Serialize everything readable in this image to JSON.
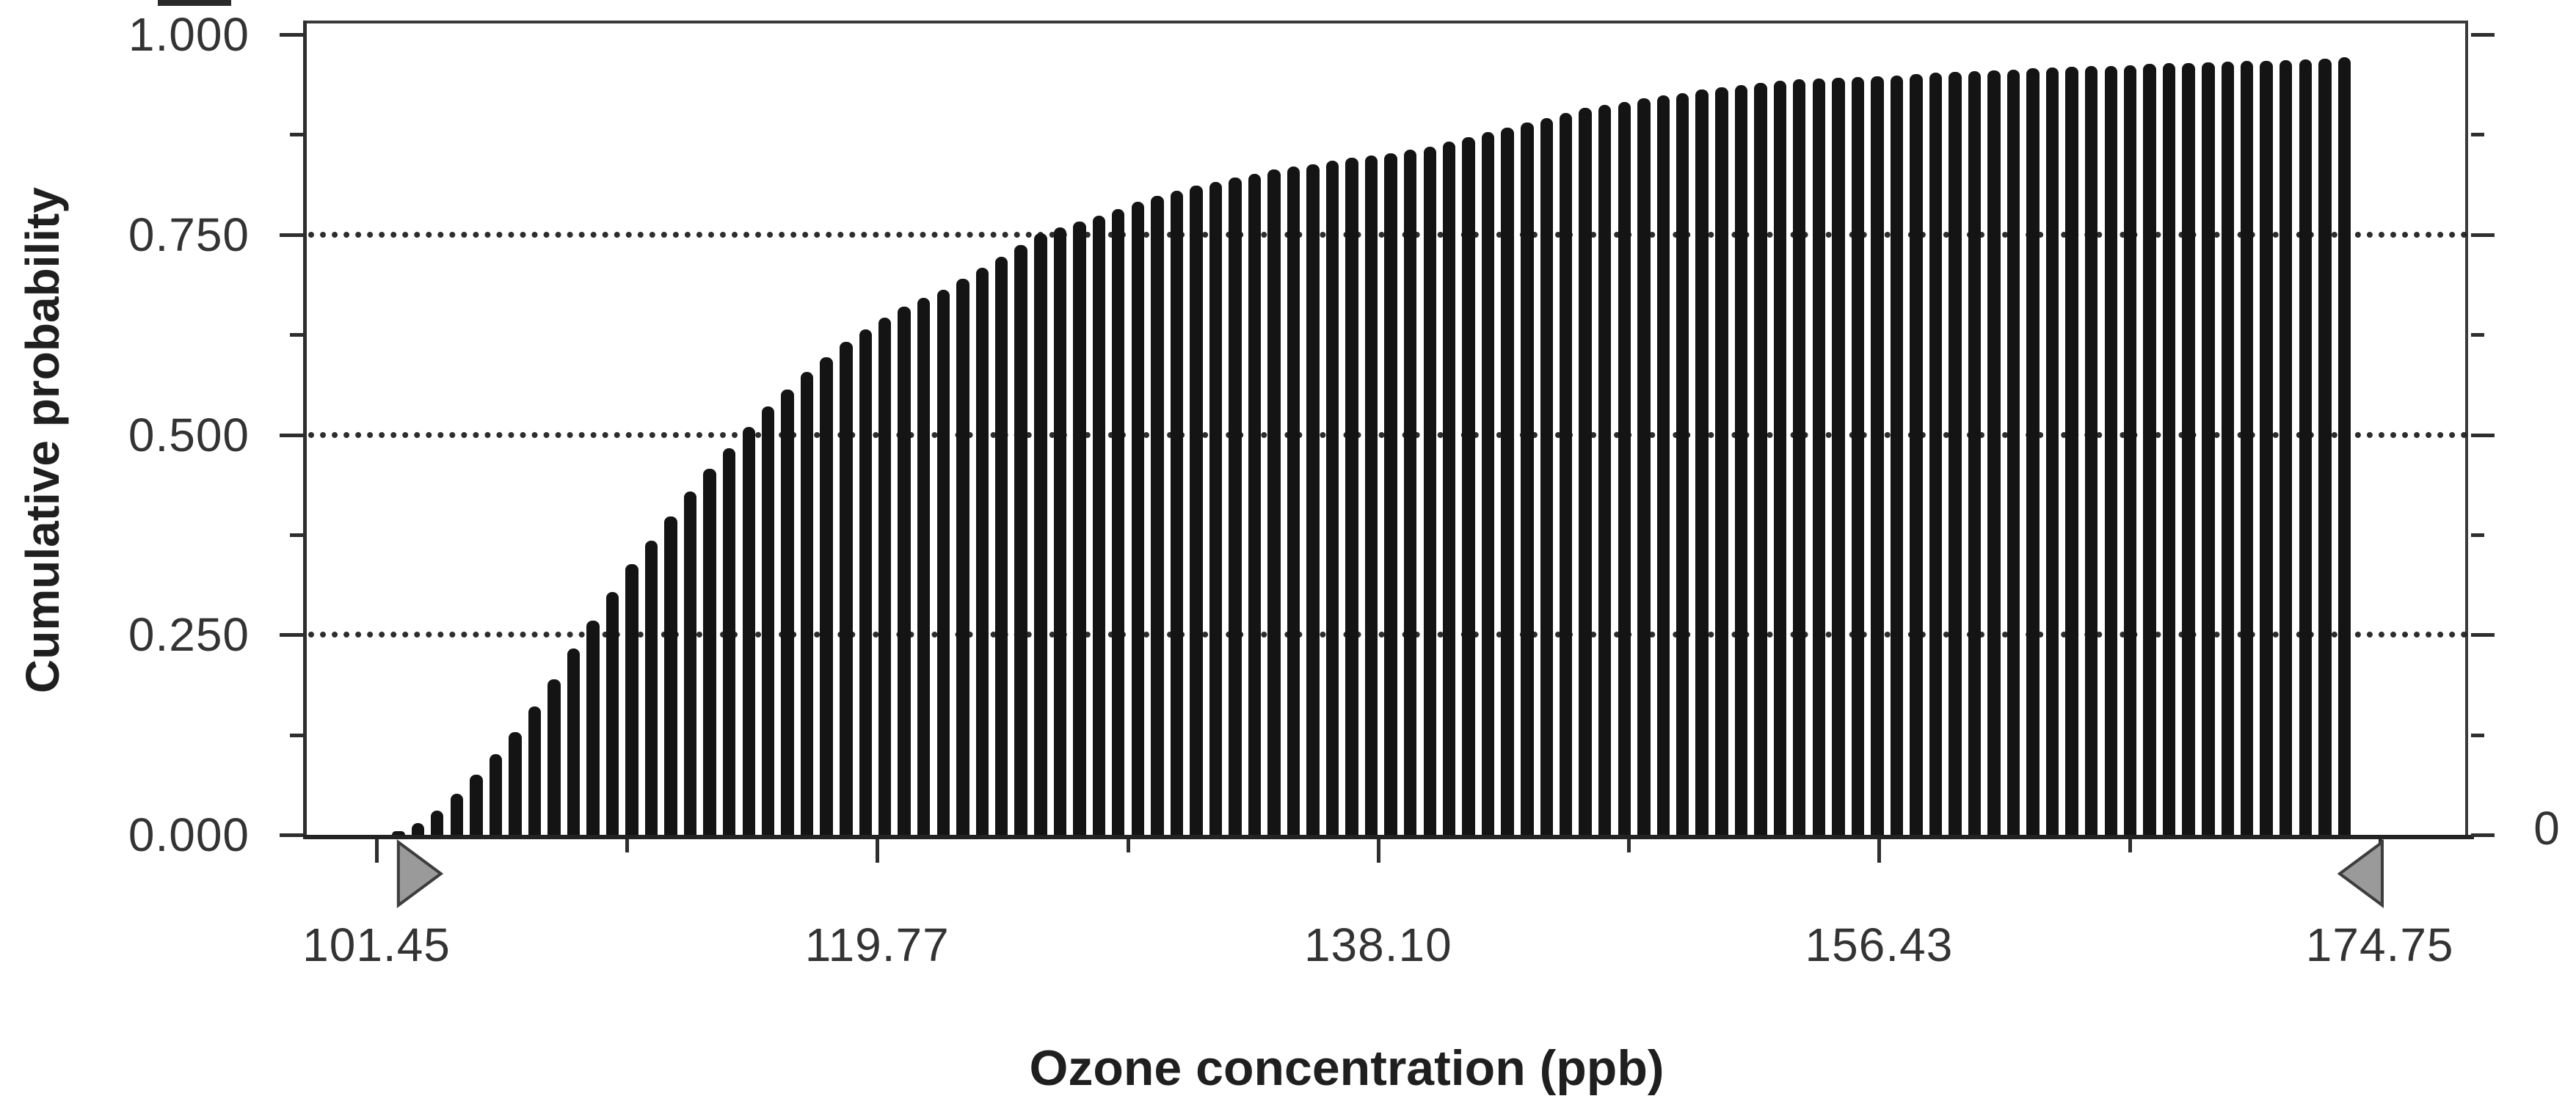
{
  "chart_data": {
    "type": "bar",
    "title": "",
    "ylabel": "Cumulative probability",
    "xlabel": "Ozone concentration (ppb)",
    "y_tick_labels": [
      "0.000",
      "0.250",
      "0.500",
      "0.750",
      "1.000"
    ],
    "y_tick_values": [
      0,
      0.25,
      0.5,
      0.75,
      1.0
    ],
    "y_minor_tick_values": [
      0.125,
      0.375,
      0.625,
      0.875
    ],
    "x_tick_labels": [
      "101.45",
      "119.77",
      "138.10",
      "156.43",
      "174.75"
    ],
    "x_tick_values": [
      101.45,
      119.77,
      138.1,
      156.43,
      174.75
    ],
    "x_minor_tick_values": [
      110.61,
      128.94,
      147.27,
      165.59
    ],
    "right_axis_tick_label": "0",
    "gridlines_at": [
      0.25,
      0.5,
      0.75
    ],
    "grid_style": "dotted",
    "legend": "none",
    "xlim": [
      98.9,
      178.0
    ],
    "ylim": [
      0,
      1.0
    ],
    "series": [
      {
        "name": "cumulative probability of ozone concentration",
        "x": [
          102.25,
          102.96,
          103.67,
          104.39,
          105.1,
          105.81,
          106.52,
          107.23,
          107.95,
          108.66,
          109.37,
          110.08,
          110.79,
          111.51,
          112.22,
          112.93,
          113.64,
          114.35,
          115.07,
          115.78,
          116.49,
          117.2,
          117.91,
          118.63,
          119.34,
          120.05,
          120.76,
          121.47,
          122.19,
          122.9,
          123.61,
          124.32,
          125.03,
          125.75,
          126.46,
          127.17,
          127.88,
          128.59,
          129.31,
          130.02,
          130.73,
          131.44,
          132.15,
          132.87,
          133.58,
          134.29,
          135.0,
          135.71,
          136.43,
          137.14,
          137.85,
          138.56,
          139.27,
          139.99,
          140.7,
          141.41,
          142.12,
          142.83,
          143.55,
          144.26,
          144.97,
          145.68,
          146.39,
          147.11,
          147.82,
          148.53,
          149.24,
          149.95,
          150.67,
          151.38,
          152.09,
          152.8,
          153.51,
          154.23,
          154.94,
          155.65,
          156.36,
          157.07,
          157.79,
          158.5,
          159.21,
          159.92,
          160.63,
          161.35,
          162.06,
          162.77,
          163.48,
          164.19,
          164.91,
          165.62,
          166.33,
          167.04,
          167.75,
          168.47,
          169.18,
          169.89,
          170.6,
          171.31,
          172.03,
          172.74,
          173.45
        ],
        "y": [
          0.005,
          0.015,
          0.03,
          0.051,
          0.075,
          0.101,
          0.128,
          0.16,
          0.194,
          0.233,
          0.268,
          0.303,
          0.338,
          0.368,
          0.398,
          0.429,
          0.457,
          0.483,
          0.51,
          0.535,
          0.556,
          0.578,
          0.597,
          0.616,
          0.632,
          0.646,
          0.66,
          0.671,
          0.681,
          0.695,
          0.709,
          0.722,
          0.737,
          0.752,
          0.759,
          0.766,
          0.774,
          0.782,
          0.791,
          0.798,
          0.805,
          0.811,
          0.816,
          0.821,
          0.826,
          0.831,
          0.835,
          0.838,
          0.842,
          0.846,
          0.849,
          0.852,
          0.856,
          0.86,
          0.866,
          0.872,
          0.878,
          0.884,
          0.89,
          0.896,
          0.902,
          0.908,
          0.912,
          0.916,
          0.92,
          0.924,
          0.927,
          0.931,
          0.934,
          0.937,
          0.94,
          0.942,
          0.944,
          0.945,
          0.946,
          0.947,
          0.948,
          0.949,
          0.951,
          0.952,
          0.953,
          0.954,
          0.955,
          0.956,
          0.958,
          0.959,
          0.96,
          0.961,
          0.961,
          0.962,
          0.963,
          0.964,
          0.964,
          0.965,
          0.966,
          0.967,
          0.967,
          0.968,
          0.969,
          0.97,
          0.972
        ]
      }
    ],
    "delimiters": {
      "shape": "triangle",
      "left_x": 102.25,
      "right_x": 174.84
    }
  },
  "colors": {
    "background": "#ffffff",
    "bar": "#141414",
    "axis": "#2e2e2e",
    "grid": "#1c1c1c",
    "text": "#2b2b2b",
    "delimiter_fill": "#9a9a9a",
    "delimiter_stroke": "#3d3d3d"
  }
}
